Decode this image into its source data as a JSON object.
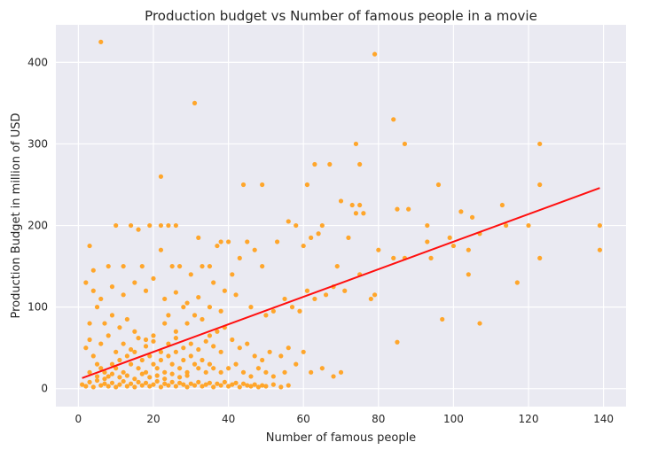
{
  "chart_data": {
    "type": "scatter",
    "title": "Production budget vs Number of famous people in a movie",
    "xlabel": "Number of famous people",
    "ylabel": "Production Budget in million of USD",
    "xlim": [
      -6,
      146
    ],
    "ylim": [
      -22,
      446
    ],
    "xticks": [
      0,
      20,
      40,
      60,
      80,
      100,
      120,
      140
    ],
    "yticks": [
      0,
      100,
      200,
      300,
      400
    ],
    "grid": true,
    "colors": {
      "background": "#eaeaf2",
      "grid": "#ffffff",
      "points": "#ffa62b",
      "fit_line": "#ff0f0f"
    },
    "series": [
      {
        "type": "scatter",
        "points": [
          [
            6,
            425
          ],
          [
            79,
            410
          ],
          [
            31,
            350
          ],
          [
            84,
            330
          ],
          [
            74,
            300
          ],
          [
            87,
            300
          ],
          [
            123,
            300
          ],
          [
            75,
            275
          ],
          [
            63,
            275
          ],
          [
            67,
            275
          ],
          [
            22,
            260
          ],
          [
            44,
            250
          ],
          [
            49,
            250
          ],
          [
            61,
            250
          ],
          [
            96,
            250
          ],
          [
            123,
            250
          ],
          [
            70,
            230
          ],
          [
            73,
            225
          ],
          [
            75,
            225
          ],
          [
            74,
            215
          ],
          [
            76,
            215
          ],
          [
            85,
            220
          ],
          [
            88,
            220
          ],
          [
            102,
            217
          ],
          [
            113,
            225
          ],
          [
            105,
            210
          ],
          [
            114,
            200
          ],
          [
            120,
            200
          ],
          [
            139,
            200
          ],
          [
            93,
            200
          ],
          [
            107,
            190
          ],
          [
            99,
            185
          ],
          [
            64,
            190
          ],
          [
            72,
            185
          ],
          [
            65,
            200
          ],
          [
            56,
            205
          ],
          [
            58,
            200
          ],
          [
            53,
            180
          ],
          [
            60,
            175
          ],
          [
            80,
            170
          ],
          [
            93,
            180
          ],
          [
            100,
            175
          ],
          [
            104,
            170
          ],
          [
            123,
            160
          ],
          [
            139,
            170
          ],
          [
            87,
            160
          ],
          [
            84,
            160
          ],
          [
            94,
            160
          ],
          [
            117,
            130
          ],
          [
            104,
            140
          ],
          [
            107,
            80
          ],
          [
            97,
            85
          ],
          [
            85,
            57
          ],
          [
            79,
            115
          ],
          [
            75,
            140
          ],
          [
            69,
            150
          ],
          [
            62,
            185
          ],
          [
            37,
            175
          ],
          [
            38,
            180
          ],
          [
            40,
            180
          ],
          [
            45,
            180
          ],
          [
            43,
            160
          ],
          [
            41,
            140
          ],
          [
            47,
            170
          ],
          [
            49,
            150
          ],
          [
            35,
            150
          ],
          [
            32,
            185
          ],
          [
            10,
            200
          ],
          [
            14,
            200
          ],
          [
            19,
            200
          ],
          [
            16,
            195
          ],
          [
            22,
            200
          ],
          [
            24,
            200
          ],
          [
            26,
            200
          ],
          [
            3,
            175
          ],
          [
            8,
            150
          ],
          [
            12,
            150
          ],
          [
            17,
            150
          ],
          [
            22,
            170
          ],
          [
            25,
            150
          ],
          [
            27,
            150
          ],
          [
            30,
            140
          ],
          [
            33,
            150
          ],
          [
            36,
            130
          ],
          [
            39,
            120
          ],
          [
            42,
            115
          ],
          [
            46,
            100
          ],
          [
            50,
            90
          ],
          [
            52,
            95
          ],
          [
            55,
            110
          ],
          [
            57,
            100
          ],
          [
            59,
            95
          ],
          [
            61,
            120
          ],
          [
            63,
            110
          ],
          [
            66,
            115
          ],
          [
            68,
            125
          ],
          [
            71,
            120
          ],
          [
            78,
            110
          ],
          [
            4,
            145
          ],
          [
            2,
            130
          ],
          [
            5,
            100
          ],
          [
            7,
            80
          ],
          [
            9,
            90
          ],
          [
            11,
            75
          ],
          [
            13,
            85
          ],
          [
            15,
            70
          ],
          [
            18,
            60
          ],
          [
            20,
            65
          ],
          [
            23,
            80
          ],
          [
            24,
            90
          ],
          [
            26,
            70
          ],
          [
            28,
            100
          ],
          [
            29,
            80
          ],
          [
            31,
            90
          ],
          [
            33,
            85
          ],
          [
            35,
            65
          ],
          [
            37,
            70
          ],
          [
            39,
            75
          ],
          [
            41,
            60
          ],
          [
            43,
            50
          ],
          [
            45,
            55
          ],
          [
            47,
            40
          ],
          [
            49,
            35
          ],
          [
            51,
            45
          ],
          [
            54,
            40
          ],
          [
            56,
            50
          ],
          [
            58,
            30
          ],
          [
            60,
            45
          ],
          [
            62,
            20
          ],
          [
            65,
            25
          ],
          [
            68,
            15
          ],
          [
            70,
            20
          ],
          [
            3,
            60
          ],
          [
            4,
            40
          ],
          [
            5,
            30
          ],
          [
            6,
            25
          ],
          [
            7,
            20
          ],
          [
            8,
            15
          ],
          [
            9,
            30
          ],
          [
            10,
            25
          ],
          [
            11,
            35
          ],
          [
            12,
            20
          ],
          [
            13,
            40
          ],
          [
            14,
            30
          ],
          [
            15,
            45
          ],
          [
            16,
            25
          ],
          [
            17,
            35
          ],
          [
            18,
            20
          ],
          [
            19,
            40
          ],
          [
            20,
            30
          ],
          [
            21,
            25
          ],
          [
            22,
            35
          ],
          [
            23,
            20
          ],
          [
            24,
            40
          ],
          [
            25,
            30
          ],
          [
            26,
            45
          ],
          [
            27,
            25
          ],
          [
            28,
            35
          ],
          [
            29,
            20
          ],
          [
            30,
            40
          ],
          [
            31,
            30
          ],
          [
            32,
            25
          ],
          [
            33,
            35
          ],
          [
            34,
            20
          ],
          [
            35,
            30
          ],
          [
            36,
            25
          ],
          [
            38,
            20
          ],
          [
            40,
            25
          ],
          [
            42,
            30
          ],
          [
            44,
            20
          ],
          [
            46,
            15
          ],
          [
            48,
            25
          ],
          [
            50,
            20
          ],
          [
            52,
            15
          ],
          [
            55,
            20
          ],
          [
            1,
            5
          ],
          [
            2,
            3
          ],
          [
            3,
            8
          ],
          [
            4,
            2
          ],
          [
            5,
            10
          ],
          [
            6,
            4
          ],
          [
            7,
            6
          ],
          [
            8,
            3
          ],
          [
            9,
            7
          ],
          [
            10,
            2
          ],
          [
            11,
            5
          ],
          [
            12,
            9
          ],
          [
            13,
            3
          ],
          [
            14,
            6
          ],
          [
            15,
            2
          ],
          [
            16,
            8
          ],
          [
            17,
            4
          ],
          [
            18,
            7
          ],
          [
            19,
            3
          ],
          [
            20,
            5
          ],
          [
            21,
            9
          ],
          [
            22,
            2
          ],
          [
            23,
            6
          ],
          [
            24,
            4
          ],
          [
            25,
            8
          ],
          [
            26,
            3
          ],
          [
            27,
            7
          ],
          [
            28,
            5
          ],
          [
            29,
            2
          ],
          [
            30,
            6
          ],
          [
            31,
            4
          ],
          [
            32,
            8
          ],
          [
            33,
            3
          ],
          [
            34,
            5
          ],
          [
            35,
            7
          ],
          [
            36,
            2
          ],
          [
            37,
            6
          ],
          [
            38,
            4
          ],
          [
            39,
            8
          ],
          [
            40,
            3
          ],
          [
            41,
            5
          ],
          [
            42,
            7
          ],
          [
            43,
            2
          ],
          [
            44,
            6
          ],
          [
            45,
            4
          ],
          [
            46,
            3
          ],
          [
            47,
            5
          ],
          [
            48,
            2
          ],
          [
            49,
            4
          ],
          [
            50,
            3
          ],
          [
            52,
            5
          ],
          [
            54,
            2
          ],
          [
            56,
            4
          ],
          [
            3,
            20
          ],
          [
            5,
            15
          ],
          [
            7,
            12
          ],
          [
            9,
            18
          ],
          [
            11,
            14
          ],
          [
            13,
            16
          ],
          [
            15,
            12
          ],
          [
            17,
            18
          ],
          [
            19,
            14
          ],
          [
            21,
            16
          ],
          [
            23,
            12
          ],
          [
            25,
            18
          ],
          [
            27,
            14
          ],
          [
            29,
            16
          ],
          [
            2,
            50
          ],
          [
            3,
            80
          ],
          [
            6,
            55
          ],
          [
            8,
            65
          ],
          [
            10,
            45
          ],
          [
            12,
            55
          ],
          [
            14,
            48
          ],
          [
            16,
            62
          ],
          [
            18,
            52
          ],
          [
            20,
            58
          ],
          [
            22,
            45
          ],
          [
            24,
            55
          ],
          [
            26,
            62
          ],
          [
            28,
            50
          ],
          [
            30,
            55
          ],
          [
            32,
            48
          ],
          [
            34,
            58
          ],
          [
            36,
            52
          ],
          [
            38,
            45
          ],
          [
            4,
            120
          ],
          [
            6,
            110
          ],
          [
            9,
            125
          ],
          [
            12,
            115
          ],
          [
            15,
            130
          ],
          [
            18,
            120
          ],
          [
            20,
            135
          ],
          [
            23,
            110
          ],
          [
            26,
            118
          ],
          [
            29,
            105
          ],
          [
            32,
            112
          ],
          [
            35,
            100
          ],
          [
            38,
            95
          ]
        ]
      },
      {
        "type": "line",
        "points": [
          [
            1,
            13
          ],
          [
            139,
            246
          ]
        ]
      }
    ]
  }
}
